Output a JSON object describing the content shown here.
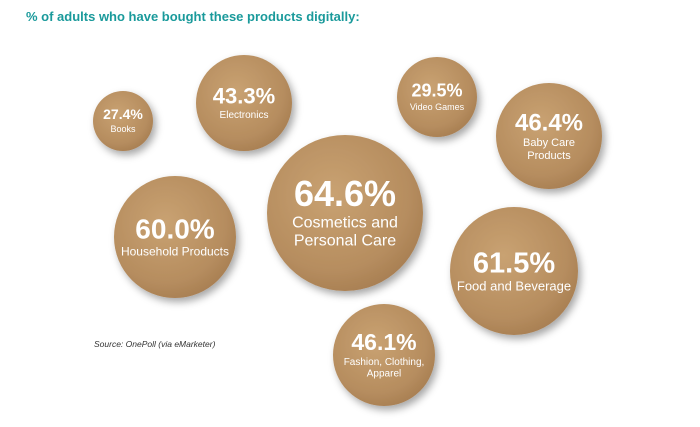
{
  "title": "% of adults who have bought these products digitally:",
  "source": "Source: OnePoll (via eMarketer)",
  "colors": {
    "title": "#1a9a9b",
    "bubble": "#b68d5f",
    "bubble_dark": "#9e7549",
    "text": "#ffffff"
  },
  "chart_data": {
    "type": "bubble",
    "title": "% of adults who have bought these products digitally:",
    "unit": "%",
    "items": [
      {
        "value": 27.4,
        "value_label": "27.4%",
        "label_lines": [
          "Books"
        ]
      },
      {
        "value": 43.3,
        "value_label": "43.3%",
        "label_lines": [
          "Electronics"
        ]
      },
      {
        "value": 29.5,
        "value_label": "29.5%",
        "label_lines": [
          "Video Games"
        ]
      },
      {
        "value": 46.4,
        "value_label": "46.4%",
        "label_lines": [
          "Baby Care",
          "Products"
        ]
      },
      {
        "value": 64.6,
        "value_label": "64.6%",
        "label_lines": [
          "Cosmetics and",
          "Personal Care"
        ]
      },
      {
        "value": 60.0,
        "value_label": "60.0%",
        "label_lines": [
          "Household Products"
        ]
      },
      {
        "value": 61.5,
        "value_label": "61.5%",
        "label_lines": [
          "Food and Beverage"
        ]
      },
      {
        "value": 46.1,
        "value_label": "46.1%",
        "label_lines": [
          "Fashion, Clothing,",
          "Apparel"
        ]
      }
    ]
  }
}
